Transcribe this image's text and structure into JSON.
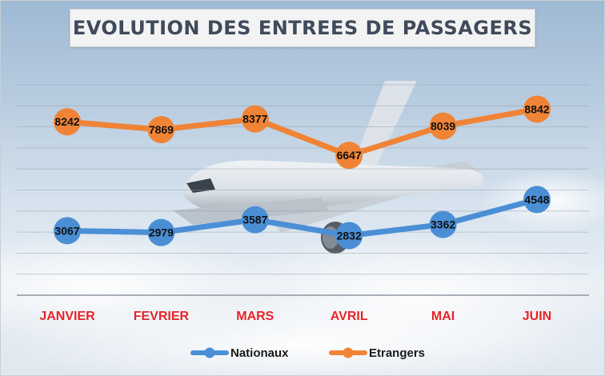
{
  "chart_data": {
    "type": "line",
    "title": "EVOLUTION DES ENTREES DE PASSAGERS",
    "categories": [
      "JANVIER",
      "FEVRIER",
      "MARS",
      "AVRIL",
      "MAI",
      "JUIN"
    ],
    "series": [
      {
        "name": "Nationaux",
        "values": [
          3067,
          2979,
          3587,
          2832,
          3362,
          4548
        ],
        "color": "#4a8fd6"
      },
      {
        "name": "Etrangers",
        "values": [
          8242,
          7869,
          8377,
          6647,
          8039,
          8842
        ],
        "color": "#f08436"
      }
    ],
    "ylim": [
      0,
      10000
    ],
    "grid": true,
    "legend": "bottom",
    "category_label_color": "#e8242a"
  }
}
